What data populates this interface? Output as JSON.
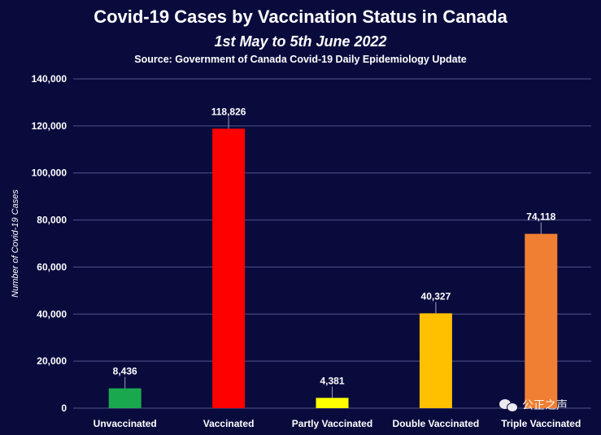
{
  "title": "Covid-19 Cases by Vaccination Status in Canada",
  "subtitle": "1st May to 5th June 2022",
  "source": "Source: Government of Canada Covid-19 Daily Epidemiology Update",
  "watermark": "公正之声",
  "colors": {
    "background": "#0a0b3d",
    "grid": "#4f5488",
    "text": "#ffffff"
  },
  "chart_data": {
    "type": "bar",
    "categories": [
      "Unvaccinated",
      "Vaccinated",
      "Partly Vaccinated",
      "Double Vaccinated",
      "Triple Vaccinated"
    ],
    "values": [
      8436,
      118826,
      4381,
      40327,
      74118
    ],
    "value_labels": [
      "8,436",
      "118,826",
      "4,381",
      "40,327",
      "74,118"
    ],
    "bar_colors": [
      "#1aa84f",
      "#ff0000",
      "#ffff00",
      "#ffc000",
      "#f07f33"
    ],
    "ylabel": "Number of Covid-19 Cases",
    "ylim": [
      0,
      140000
    ],
    "yticks": [
      0,
      20000,
      40000,
      60000,
      80000,
      100000,
      120000,
      140000
    ],
    "ytick_labels": [
      "0",
      "20,000",
      "40,000",
      "60,000",
      "80,000",
      "100,000",
      "120,000",
      "140,000"
    ],
    "grid": true,
    "legend": false
  }
}
